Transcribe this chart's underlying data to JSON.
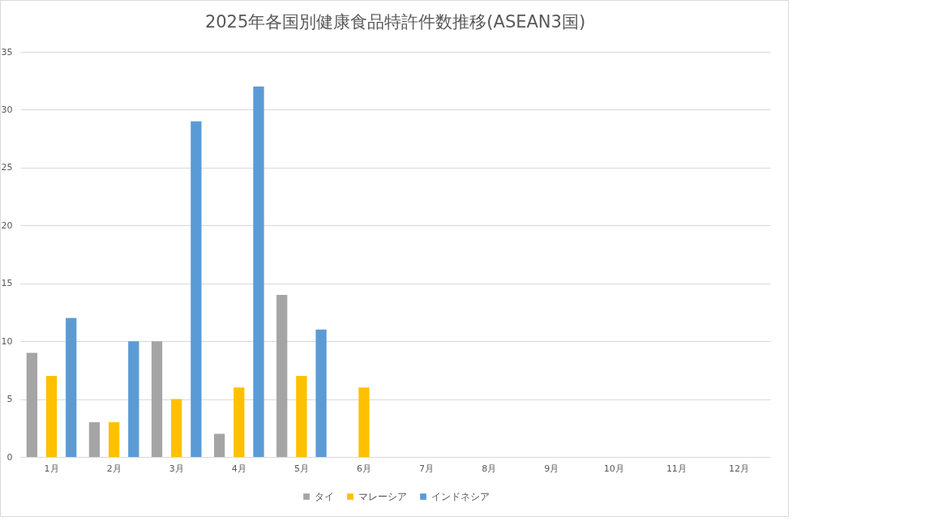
{
  "chart_data": {
    "type": "bar",
    "title": "2025年各国別健康食品特許件数推移(ASEAN3国)",
    "categories": [
      "1月",
      "2月",
      "3月",
      "4月",
      "5月",
      "6月",
      "7月",
      "8月",
      "9月",
      "10月",
      "11月",
      "12月"
    ],
    "series": [
      {
        "name": "タイ",
        "color": "#a5a5a5",
        "values": [
          9,
          3,
          10,
          2,
          14,
          null,
          null,
          null,
          null,
          null,
          null,
          null
        ]
      },
      {
        "name": "マレーシア",
        "color": "#ffc000",
        "values": [
          7,
          3,
          5,
          6,
          7,
          6,
          null,
          null,
          null,
          null,
          null,
          null
        ]
      },
      {
        "name": "インドネシア",
        "color": "#5b9bd5",
        "values": [
          12,
          10,
          29,
          32,
          11,
          null,
          null,
          null,
          null,
          null,
          null,
          null
        ]
      }
    ],
    "ylim": [
      0,
      35
    ],
    "yticks": [
      0,
      5,
      10,
      15,
      20,
      25,
      30,
      35
    ],
    "grid": "y",
    "legend": "bottom"
  }
}
